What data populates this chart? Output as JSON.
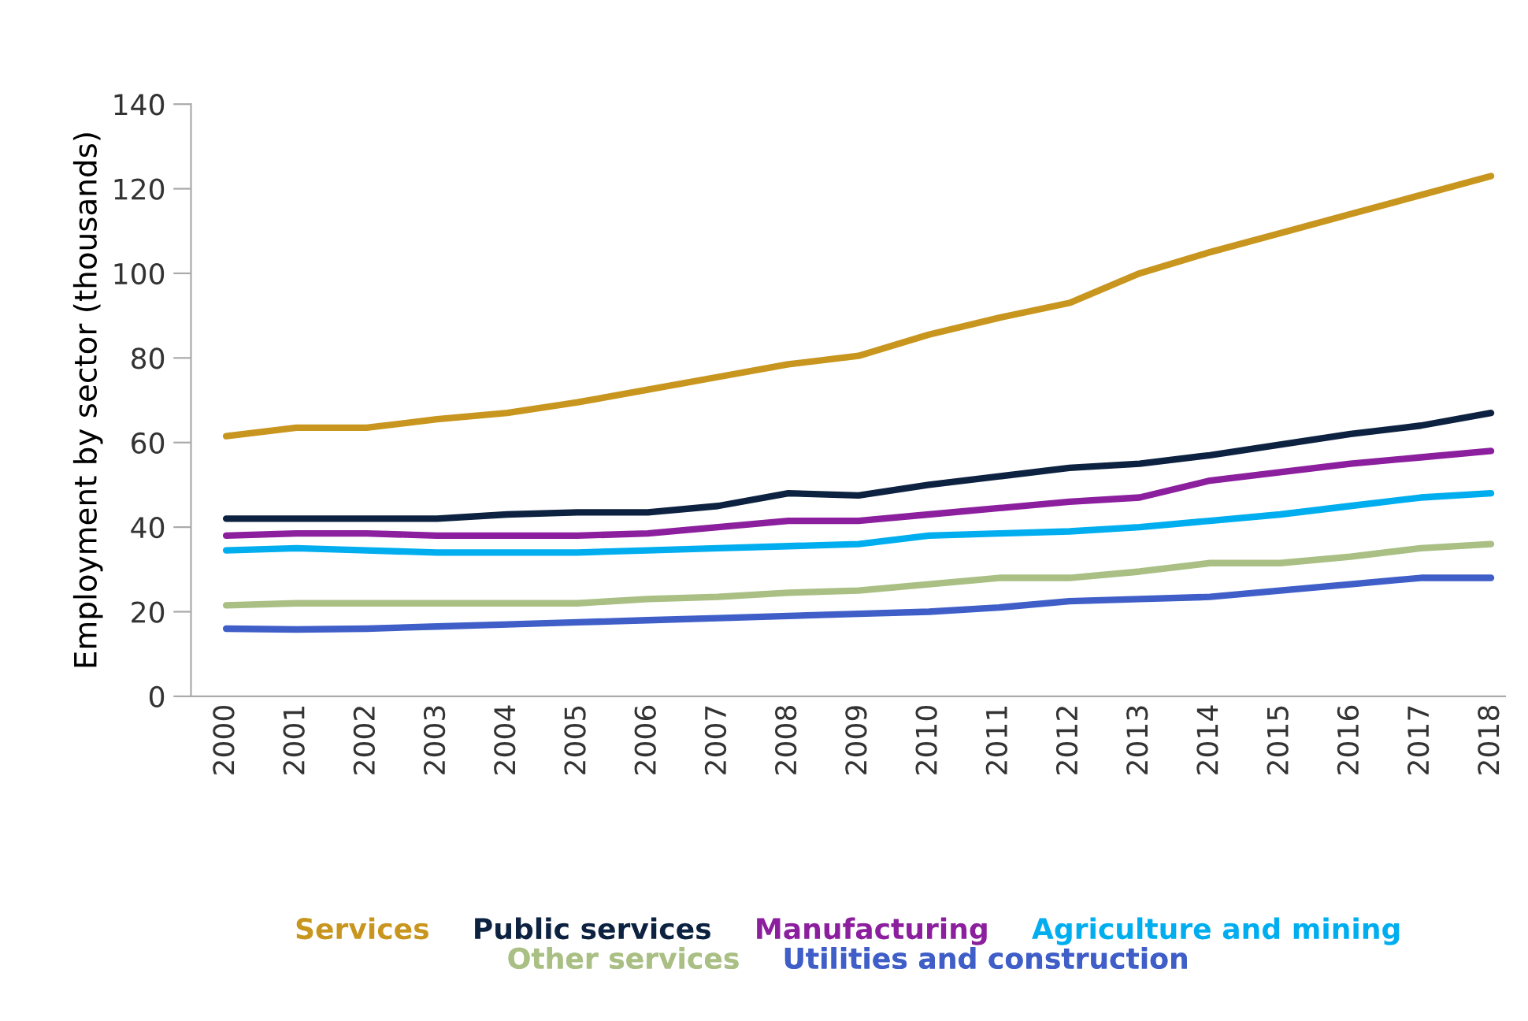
{
  "chart_data": {
    "type": "line",
    "ylabel": "Employment by sector (thousands)",
    "categories": [
      "2000",
      "2001",
      "2002",
      "2003",
      "2004",
      "2005",
      "2006",
      "2007",
      "2008",
      "2009",
      "2010",
      "2011",
      "2012",
      "2013",
      "2014",
      "2015",
      "2016",
      "2017",
      "2018"
    ],
    "series": [
      {
        "name": "Services",
        "color": "#c8961e",
        "values": [
          61.5,
          63.5,
          63.5,
          65.5,
          67,
          69.5,
          72.5,
          75.5,
          78.5,
          80.5,
          85.5,
          89.5,
          93,
          100,
          105,
          109.5,
          114,
          118.5,
          123
        ]
      },
      {
        "name": "Public services",
        "color": "#0d2240",
        "values": [
          42,
          42,
          42,
          42,
          43,
          43.5,
          43.5,
          45,
          48,
          47.5,
          50,
          52,
          54,
          55,
          57,
          59.5,
          62,
          64,
          67
        ]
      },
      {
        "name": "Manufacturing",
        "color": "#8b1f9e",
        "values": [
          38,
          38.5,
          38.5,
          38,
          38,
          38,
          38.5,
          40,
          41.5,
          41.5,
          43,
          44.5,
          46,
          47,
          51,
          53,
          55,
          56.5,
          58
        ]
      },
      {
        "name": "Agriculture and mining",
        "color": "#00aeef",
        "values": [
          34.5,
          35,
          34.5,
          34,
          34,
          34,
          34.5,
          35,
          35.5,
          36,
          38,
          38.5,
          39,
          40,
          41.5,
          43,
          45,
          47,
          48
        ]
      },
      {
        "name": "Other services",
        "color": "#a9bf84",
        "values": [
          21.5,
          22,
          22,
          22,
          22,
          22,
          23,
          23.5,
          24.5,
          25,
          26.5,
          28,
          28,
          29.5,
          31.5,
          31.5,
          33,
          35,
          36
        ]
      },
      {
        "name": "Utilities and construction",
        "color": "#3f5ec8",
        "values": [
          16,
          15.8,
          16,
          16.5,
          17,
          17.5,
          18,
          18.5,
          19,
          19.5,
          20,
          21,
          22.5,
          23,
          23.5,
          25,
          26.5,
          28,
          28
        ]
      }
    ],
    "ylim": [
      0,
      140
    ],
    "yticks": [
      0,
      20,
      40,
      60,
      80,
      100,
      120,
      140
    ],
    "grid": false,
    "legend": "bottom",
    "marker": "none",
    "line_style": "solid"
  }
}
